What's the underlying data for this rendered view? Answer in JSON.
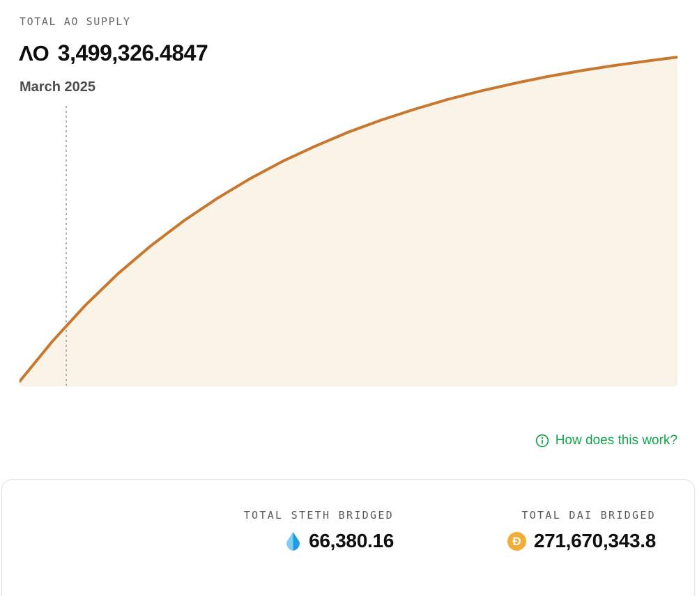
{
  "header": {
    "label": "TOTAL AO SUPPLY",
    "logo": "ΛO",
    "value": "3,499,326.4847",
    "period": "March 2025"
  },
  "chart_data": {
    "type": "area",
    "title": "TOTAL AO SUPPLY",
    "current_supply": "3,499,326.4847",
    "marker": {
      "x_fraction": 0.071,
      "label": "March 2025"
    },
    "axes_visible": false,
    "line_color": "#c8772e",
    "fill_color": "#faf3e8",
    "marker_line_color": "#999999",
    "points": [
      {
        "x": 0,
        "y": 0
      },
      {
        "x": 0.05,
        "y": 0.124
      },
      {
        "x": 0.1,
        "y": 0.235
      },
      {
        "x": 0.15,
        "y": 0.333
      },
      {
        "x": 0.2,
        "y": 0.419
      },
      {
        "x": 0.25,
        "y": 0.496
      },
      {
        "x": 0.3,
        "y": 0.564
      },
      {
        "x": 0.35,
        "y": 0.625
      },
      {
        "x": 0.4,
        "y": 0.679
      },
      {
        "x": 0.45,
        "y": 0.726
      },
      {
        "x": 0.5,
        "y": 0.769
      },
      {
        "x": 0.55,
        "y": 0.806
      },
      {
        "x": 0.6,
        "y": 0.839
      },
      {
        "x": 0.65,
        "y": 0.869
      },
      {
        "x": 0.7,
        "y": 0.895
      },
      {
        "x": 0.75,
        "y": 0.918
      },
      {
        "x": 0.8,
        "y": 0.939
      },
      {
        "x": 0.85,
        "y": 0.957
      },
      {
        "x": 0.9,
        "y": 0.973
      },
      {
        "x": 0.95,
        "y": 0.987
      },
      {
        "x": 1,
        "y": 1
      }
    ]
  },
  "link": {
    "label": "How does this work?"
  },
  "stats": [
    {
      "label": "TOTAL STETH BRIDGED",
      "value": "66,380.16",
      "icon": "steth-droplet-icon"
    },
    {
      "label": "TOTAL DAI BRIDGED",
      "value": "271,670,343.8",
      "icon": "dai-coin-icon"
    }
  ],
  "icons": {
    "dai_glyph": "Đ"
  },
  "colors": {
    "accent_line": "#c8772e",
    "area_fill": "#faf3e8",
    "green": "#12a54b",
    "steth_blue_dark": "#1f9de0",
    "steth_blue_light": "#7fccf2",
    "dai_gold": "#f5ac37"
  }
}
